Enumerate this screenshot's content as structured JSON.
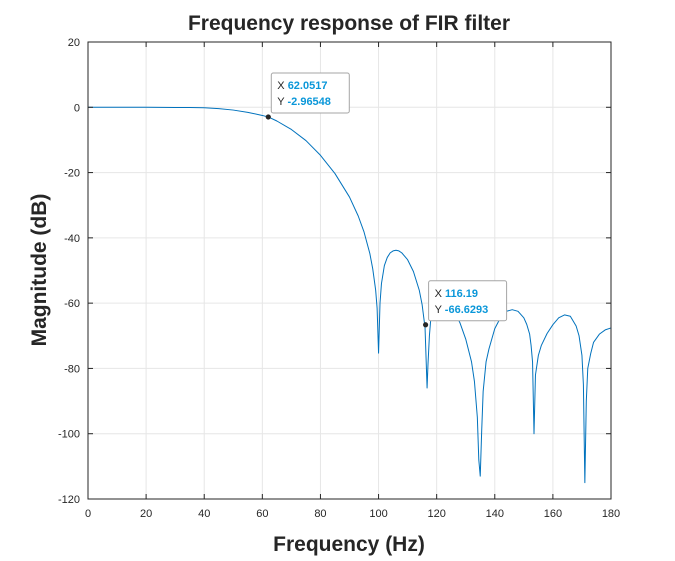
{
  "chart_data": {
    "type": "line",
    "title": "Frequency response of FIR filter",
    "xlabel": "Frequency (Hz)",
    "ylabel": "Magnitude (dB)",
    "xlim": [
      0,
      180
    ],
    "ylim": [
      -120,
      20
    ],
    "xticks": [
      "0",
      "20",
      "40",
      "60",
      "80",
      "100",
      "120",
      "140",
      "160",
      "180"
    ],
    "yticks": [
      "20",
      "0",
      "-20",
      "-40",
      "-60",
      "-80",
      "-100",
      "-120"
    ],
    "grid": true,
    "series": [
      {
        "color": "#0072BD",
        "x": [
          0,
          10,
          20,
          30,
          35,
          40,
          45,
          50,
          55,
          60,
          62.05,
          65,
          70,
          75,
          80,
          85,
          90,
          93,
          95,
          97,
          98,
          99,
          99.5,
          100,
          100.5,
          101,
          102,
          103,
          104,
          105,
          106,
          107,
          108,
          110,
          112,
          114,
          115,
          116,
          116.7,
          117,
          117.5,
          118,
          119,
          120,
          121,
          122,
          124,
          126,
          128,
          130,
          132,
          133,
          134,
          134.5,
          135,
          135.5,
          136,
          137,
          138,
          140,
          142,
          144,
          146,
          148,
          150,
          151,
          152,
          152.5,
          153,
          153.5,
          154,
          155,
          156,
          158,
          160,
          162,
          164,
          166,
          168,
          169,
          170,
          170.5,
          171,
          171.5,
          172,
          173,
          174,
          176,
          178,
          180
        ],
        "y": [
          0,
          0,
          0,
          -0.05,
          -0.05,
          -0.15,
          -0.4,
          -0.85,
          -1.55,
          -2.5,
          -2.97,
          -4.2,
          -6.8,
          -10.2,
          -14.7,
          -20.3,
          -27.5,
          -33.3,
          -38.2,
          -44.8,
          -49.5,
          -56,
          -61.5,
          -75.3,
          -60,
          -54,
          -48.5,
          -46,
          -44.6,
          -44,
          -43.8,
          -44,
          -44.6,
          -46.7,
          -50.3,
          -56,
          -60.5,
          -67.5,
          -86,
          -79,
          -70,
          -64.5,
          -60.6,
          -59,
          -58.5,
          -58.5,
          -59.8,
          -62.3,
          -66,
          -71,
          -78,
          -84,
          -95,
          -108,
          -113,
          -99,
          -87,
          -78,
          -74,
          -67.8,
          -64.4,
          -62.5,
          -62,
          -62.5,
          -64.5,
          -66.5,
          -69.5,
          -73,
          -78,
          -100,
          -82,
          -76,
          -73,
          -69.3,
          -66.6,
          -64.5,
          -63.6,
          -64,
          -67,
          -70,
          -76,
          -85,
          -115,
          -90,
          -80,
          -75.5,
          -72,
          -69.5,
          -68.2,
          -67.6
        ]
      }
    ],
    "datatips": [
      {
        "x_label": "X",
        "x_value": "62.0517",
        "y_label": "Y",
        "y_value": "-2.96548",
        "x": 62.0517,
        "y": -2.96548
      },
      {
        "x_label": "X",
        "x_value": "116.19",
        "y_label": "Y",
        "y_value": "-66.6293",
        "x": 116.19,
        "y": -66.6293
      }
    ]
  }
}
